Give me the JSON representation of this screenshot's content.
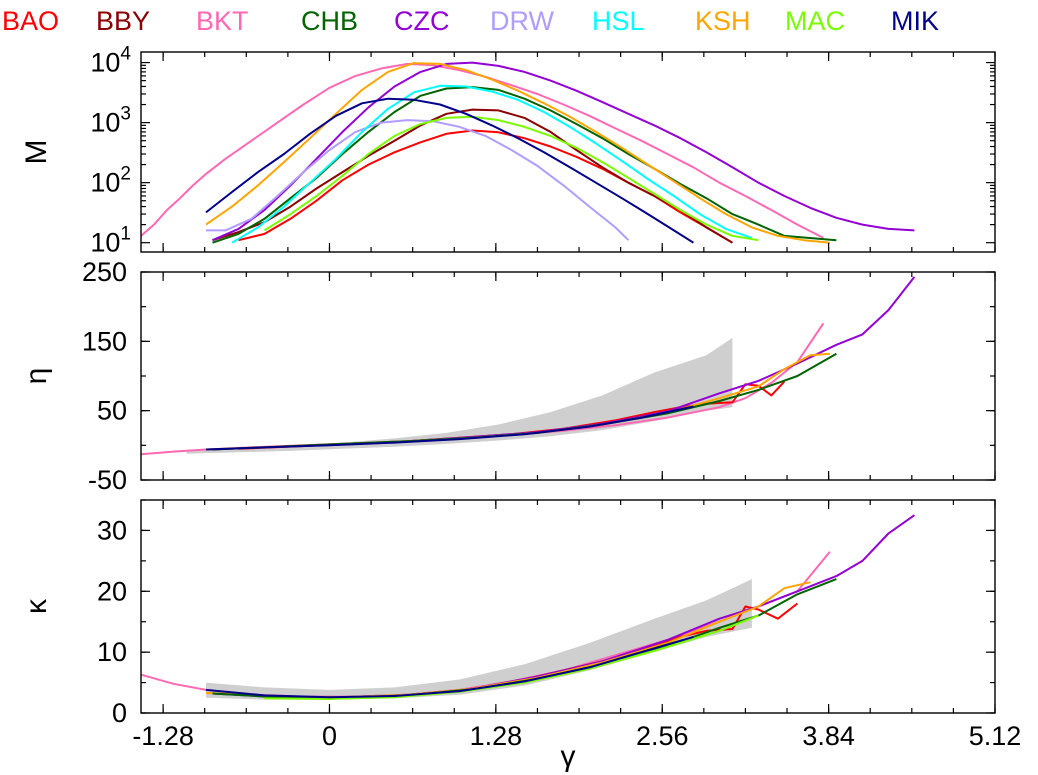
{
  "legend": [
    {
      "name": "BAO",
      "color": "#ff0000"
    },
    {
      "name": "BBY",
      "color": "#8b0000"
    },
    {
      "name": "BKT",
      "color": "#ff69b4"
    },
    {
      "name": "CHB",
      "color": "#006400"
    },
    {
      "name": "CZC",
      "color": "#9400d3"
    },
    {
      "name": "DRW",
      "color": "#b19cff"
    },
    {
      "name": "HSL",
      "color": "#00ffff"
    },
    {
      "name": "KSH",
      "color": "#ffa500"
    },
    {
      "name": "MAC",
      "color": "#7cfc00"
    },
    {
      "name": "MIK",
      "color": "#00008b"
    }
  ],
  "chart_data": [
    {
      "type": "line",
      "ylabel": "M",
      "yscale": "log",
      "ylim": [
        7,
        15000
      ],
      "xlim": [
        -1.45,
        5.12
      ],
      "yticks": [
        10,
        100,
        1000,
        10000
      ],
      "ytick_labels": [
        [
          "10",
          "1"
        ],
        [
          "10",
          "2"
        ],
        [
          "10",
          "3"
        ],
        [
          "10",
          "4"
        ]
      ],
      "series": [
        {
          "name": "BAO",
          "x": [
            -0.7,
            -0.5,
            -0.3,
            -0.1,
            0.1,
            0.3,
            0.5,
            0.7,
            0.9,
            1.1,
            1.3,
            1.5,
            1.7,
            1.9,
            2.1,
            2.3,
            2.5,
            2.7,
            2.9,
            3.1
          ],
          "y": [
            11,
            14,
            25,
            50,
            110,
            200,
            320,
            470,
            650,
            740,
            690,
            550,
            400,
            270,
            170,
            100,
            60,
            32,
            18,
            10
          ]
        },
        {
          "name": "BBY",
          "x": [
            -0.9,
            -0.7,
            -0.5,
            -0.3,
            -0.1,
            0.1,
            0.3,
            0.5,
            0.7,
            0.9,
            1.1,
            1.3,
            1.5,
            1.7,
            1.9,
            2.1,
            2.3,
            2.5,
            2.7,
            2.9,
            3.1
          ],
          "y": [
            11,
            15,
            22,
            40,
            80,
            150,
            280,
            500,
            900,
            1400,
            1650,
            1600,
            1200,
            700,
            350,
            180,
            100,
            60,
            35,
            18,
            10
          ]
        },
        {
          "name": "BKT",
          "x": [
            -1.45,
            -1.35,
            -1.25,
            -1.15,
            -1.05,
            -0.95,
            -0.8,
            -0.6,
            -0.4,
            -0.2,
            0.0,
            0.2,
            0.4,
            0.6,
            0.8,
            1.0,
            1.2,
            1.4,
            1.6,
            1.8,
            2.0,
            2.2,
            2.4,
            2.6,
            2.8,
            3.0,
            3.2,
            3.4,
            3.6,
            3.8
          ],
          "y": [
            13,
            20,
            35,
            55,
            90,
            140,
            250,
            500,
            1000,
            2000,
            3800,
            6000,
            8000,
            9500,
            9000,
            7500,
            5800,
            4200,
            3000,
            2000,
            1300,
            800,
            500,
            300,
            180,
            100,
            60,
            35,
            20,
            12
          ]
        },
        {
          "name": "CHB",
          "x": [
            -0.9,
            -0.7,
            -0.5,
            -0.3,
            -0.1,
            0.1,
            0.3,
            0.5,
            0.7,
            0.9,
            1.1,
            1.3,
            1.5,
            1.7,
            1.9,
            2.1,
            2.3,
            2.5,
            2.7,
            2.9,
            3.1,
            3.3,
            3.5,
            3.9
          ],
          "y": [
            10,
            14,
            25,
            55,
            120,
            300,
            700,
            1500,
            2800,
            3700,
            3900,
            3500,
            2500,
            1600,
            950,
            550,
            300,
            170,
            95,
            55,
            30,
            20,
            13,
            11
          ]
        },
        {
          "name": "CZC",
          "x": [
            -0.9,
            -0.7,
            -0.5,
            -0.3,
            -0.1,
            0.1,
            0.3,
            0.5,
            0.7,
            0.9,
            1.1,
            1.3,
            1.5,
            1.7,
            1.9,
            2.1,
            2.3,
            2.5,
            2.7,
            2.9,
            3.1,
            3.3,
            3.5,
            3.7,
            3.9,
            4.1,
            4.3,
            4.5
          ],
          "y": [
            11,
            17,
            35,
            90,
            250,
            700,
            1800,
            4000,
            7000,
            9500,
            10000,
            8800,
            7000,
            5000,
            3400,
            2200,
            1400,
            900,
            550,
            320,
            180,
            100,
            60,
            38,
            26,
            20,
            17,
            16
          ]
        },
        {
          "name": "DRW",
          "x": [
            -0.95,
            -0.8,
            -0.6,
            -0.4,
            -0.2,
            0.0,
            0.2,
            0.4,
            0.6,
            0.8,
            1.0,
            1.2,
            1.4,
            1.6,
            1.8,
            2.0,
            2.2,
            2.3
          ],
          "y": [
            16,
            16,
            25,
            60,
            150,
            350,
            700,
            1000,
            1100,
            1050,
            850,
            600,
            350,
            190,
            90,
            40,
            18,
            11
          ]
        },
        {
          "name": "HSL",
          "x": [
            -0.75,
            -0.55,
            -0.35,
            -0.15,
            0.05,
            0.25,
            0.45,
            0.65,
            0.85,
            1.05,
            1.25,
            1.45,
            1.65,
            1.85,
            2.05,
            2.25,
            2.45,
            2.65,
            2.85,
            3.05,
            3.25
          ],
          "y": [
            10,
            18,
            40,
            100,
            250,
            700,
            1700,
            3200,
            4100,
            4000,
            3300,
            2400,
            1500,
            850,
            450,
            230,
            115,
            60,
            30,
            17,
            12
          ]
        },
        {
          "name": "KSH",
          "x": [
            -0.95,
            -0.75,
            -0.55,
            -0.35,
            -0.15,
            0.05,
            0.25,
            0.45,
            0.65,
            0.85,
            1.05,
            1.25,
            1.45,
            1.65,
            1.85,
            2.05,
            2.25,
            2.45,
            2.65,
            2.85,
            3.05,
            3.25,
            3.45,
            3.65,
            3.85
          ],
          "y": [
            20,
            40,
            90,
            220,
            550,
            1400,
            3500,
            7000,
            9800,
            9500,
            7500,
            5200,
            3400,
            2100,
            1250,
            700,
            380,
            200,
            105,
            55,
            30,
            18,
            13,
            11,
            10
          ]
        },
        {
          "name": "MAC",
          "x": [
            -0.5,
            -0.3,
            -0.1,
            0.1,
            0.3,
            0.5,
            0.7,
            0.9,
            1.1,
            1.3,
            1.5,
            1.7,
            1.9,
            2.1,
            2.3,
            2.5,
            2.7,
            2.9,
            3.1,
            3.3
          ],
          "y": [
            16,
            30,
            60,
            130,
            300,
            600,
            950,
            1200,
            1250,
            1100,
            850,
            600,
            380,
            220,
            120,
            65,
            35,
            20,
            13,
            11
          ]
        },
        {
          "name": "MIK",
          "x": [
            -0.95,
            -0.75,
            -0.55,
            -0.35,
            -0.15,
            0.05,
            0.25,
            0.45,
            0.65,
            0.85,
            1.05,
            1.25,
            1.45,
            1.65,
            1.85,
            2.05,
            2.25,
            2.45,
            2.65,
            2.8
          ],
          "y": [
            32,
            70,
            150,
            300,
            650,
            1300,
            2100,
            2500,
            2400,
            2000,
            1400,
            900,
            550,
            320,
            180,
            100,
            55,
            30,
            16,
            10
          ]
        }
      ]
    },
    {
      "type": "line",
      "ylabel": "η",
      "ylim": [
        -50,
        250
      ],
      "xlim": [
        -1.45,
        5.12
      ],
      "yticks": [
        -50,
        50,
        150,
        250
      ],
      "ytick_labels": [
        "-50",
        "50",
        "150",
        "250"
      ],
      "band": {
        "x": [
          -1.1,
          -0.7,
          -0.3,
          0.1,
          0.5,
          0.9,
          1.3,
          1.7,
          2.1,
          2.5,
          2.9,
          3.1
        ],
        "lower": [
          -12,
          -10,
          -8,
          -5,
          -2,
          2,
          7,
          13,
          22,
          35,
          50,
          55
        ],
        "upper": [
          -8,
          -5,
          -1,
          4,
          10,
          18,
          30,
          48,
          72,
          105,
          130,
          155
        ]
      },
      "series": [
        {
          "name": "BKT",
          "x": [
            -1.45,
            -1.2,
            -0.95,
            -0.6,
            -0.2,
            0.2,
            0.6,
            1.0,
            1.4,
            1.8,
            2.2,
            2.6,
            3.0,
            3.2,
            3.4,
            3.6,
            3.8
          ],
          "y": [
            -13,
            -9,
            -6,
            -3,
            0,
            3,
            6,
            10,
            15,
            21,
            29,
            40,
            55,
            68,
            90,
            120,
            176
          ]
        },
        {
          "name": "BAO",
          "x": [
            -0.7,
            -0.2,
            0.2,
            0.6,
            1.0,
            1.4,
            1.8,
            2.2,
            2.5,
            2.7,
            2.9,
            3.1,
            3.2,
            3.3,
            3.4,
            3.5
          ],
          "y": [
            -5,
            -1,
            2,
            6,
            11,
            16,
            24,
            36,
            48,
            55,
            60,
            62,
            88,
            86,
            72,
            92
          ]
        },
        {
          "name": "CZC",
          "x": [
            -0.9,
            -0.4,
            0.1,
            0.6,
            1.1,
            1.6,
            2.1,
            2.6,
            3.0,
            3.3,
            3.6,
            3.9,
            4.1,
            4.3,
            4.5
          ],
          "y": [
            -6,
            -2,
            2,
            6,
            12,
            19,
            31,
            49,
            75,
            93,
            118,
            145,
            160,
            195,
            243
          ]
        },
        {
          "name": "KSH",
          "x": [
            -0.95,
            -0.4,
            0.1,
            0.6,
            1.1,
            1.6,
            2.1,
            2.6,
            3.0,
            3.3,
            3.5,
            3.7,
            3.85
          ],
          "y": [
            -6,
            -2,
            2,
            6,
            11,
            18,
            30,
            47,
            68,
            85,
            110,
            130,
            132
          ]
        },
        {
          "name": "CHB",
          "x": [
            -0.9,
            -0.4,
            0.1,
            0.6,
            1.1,
            1.6,
            2.1,
            2.6,
            3.0,
            3.3,
            3.6,
            3.9
          ],
          "y": [
            -6,
            -2,
            2,
            6,
            11,
            18,
            30,
            46,
            64,
            80,
            100,
            132
          ]
        },
        {
          "name": "MIK",
          "x": [
            -0.95,
            -0.5,
            0.0,
            0.5,
            1.0,
            1.5,
            2.0,
            2.4,
            2.8
          ],
          "y": [
            -6,
            -3,
            0,
            4,
            9,
            16,
            27,
            40,
            56
          ]
        }
      ]
    },
    {
      "type": "line",
      "ylabel": "κ",
      "xlabel": "γ",
      "ylim": [
        0,
        35
      ],
      "xlim": [
        -1.45,
        5.12
      ],
      "yticks": [
        0,
        10,
        20,
        30
      ],
      "ytick_labels": [
        "0",
        "10",
        "20",
        "30"
      ],
      "xticks": [
        -1.28,
        0,
        1.28,
        2.56,
        3.84,
        5.12
      ],
      "xtick_labels": [
        "-1.28",
        "0",
        "1.28",
        "2.56",
        "3.84",
        "5.12"
      ],
      "band": {
        "x": [
          -0.95,
          -0.5,
          0.0,
          0.5,
          1.0,
          1.5,
          2.0,
          2.5,
          2.9,
          3.25
        ],
        "lower": [
          2.5,
          2.2,
          2.2,
          2.4,
          3.0,
          4.5,
          7.0,
          10.0,
          12.5,
          14.0
        ],
        "upper": [
          5.0,
          4.2,
          3.8,
          4.2,
          5.5,
          8.0,
          11.5,
          15.5,
          18.5,
          22.0
        ]
      },
      "series": [
        {
          "name": "BKT",
          "x": [
            -1.45,
            -1.2,
            -0.95,
            -0.6,
            -0.2,
            0.2,
            0.6,
            1.0,
            1.4,
            1.8,
            2.2,
            2.6,
            3.0,
            3.3,
            3.6,
            3.85
          ],
          "y": [
            6.3,
            4.8,
            3.8,
            3.0,
            2.7,
            2.7,
            3.0,
            3.8,
            5.2,
            7.0,
            9.5,
            12.0,
            15.0,
            17.5,
            20.0,
            26.5
          ]
        },
        {
          "name": "BAO",
          "x": [
            -0.7,
            -0.3,
            0.2,
            0.6,
            1.0,
            1.4,
            1.8,
            2.2,
            2.5,
            2.7,
            2.9,
            3.1,
            3.2,
            3.3,
            3.45,
            3.6
          ],
          "y": [
            3.0,
            2.6,
            2.6,
            2.9,
            3.7,
            5.0,
            7.0,
            9.0,
            11.0,
            12.5,
            13.5,
            13.8,
            17.5,
            17.0,
            15.5,
            18.0
          ]
        },
        {
          "name": "CZC",
          "x": [
            -0.9,
            -0.4,
            0.1,
            0.6,
            1.1,
            1.6,
            2.1,
            2.6,
            3.0,
            3.3,
            3.6,
            3.9,
            4.1,
            4.3,
            4.5
          ],
          "y": [
            3.2,
            2.6,
            2.6,
            3.0,
            4.0,
            6.0,
            8.5,
            12.0,
            15.5,
            17.5,
            20.0,
            22.5,
            25.0,
            29.5,
            32.5
          ]
        },
        {
          "name": "KSH",
          "x": [
            -0.95,
            -0.4,
            0.1,
            0.6,
            1.1,
            1.6,
            2.1,
            2.6,
            3.0,
            3.3,
            3.5,
            3.7
          ],
          "y": [
            3.3,
            2.7,
            2.6,
            3.0,
            4.0,
            5.8,
            8.3,
            11.5,
            15.0,
            17.5,
            20.5,
            21.5
          ]
        },
        {
          "name": "CHB",
          "x": [
            -0.9,
            -0.4,
            0.1,
            0.6,
            1.1,
            1.6,
            2.1,
            2.6,
            3.0,
            3.3,
            3.6,
            3.9
          ],
          "y": [
            3.2,
            2.6,
            2.5,
            2.9,
            3.9,
            5.6,
            8.0,
            11.0,
            14.0,
            16.0,
            19.5,
            22.0
          ]
        },
        {
          "name": "MAC",
          "x": [
            -0.5,
            0.0,
            0.5,
            1.0,
            1.5,
            2.0,
            2.5,
            3.0,
            3.3
          ],
          "y": [
            2.4,
            2.3,
            2.6,
            3.5,
            5.0,
            7.3,
            10.2,
            13.5,
            16.0
          ]
        },
        {
          "name": "MIK",
          "x": [
            -0.95,
            -0.5,
            0.0,
            0.5,
            1.0,
            1.5,
            2.0,
            2.4,
            2.8
          ],
          "y": [
            3.8,
            2.9,
            2.6,
            2.8,
            3.6,
            5.2,
            7.5,
            10.0,
            12.5
          ]
        }
      ]
    }
  ]
}
